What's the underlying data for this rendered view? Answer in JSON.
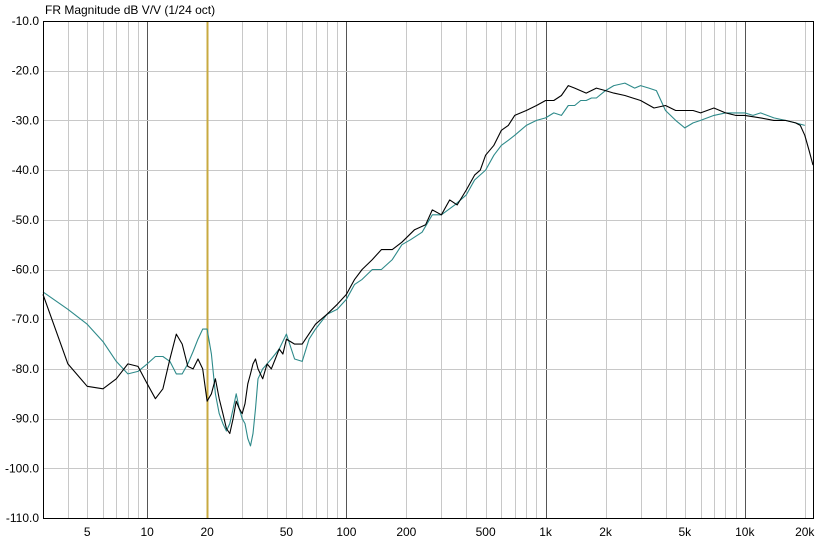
{
  "chart_data": {
    "type": "line",
    "title": "FR Magnitude dB V/V (1/24 oct)",
    "xscale": "log",
    "xlim": [
      3,
      22000
    ],
    "ylim": [
      -110,
      -10
    ],
    "grid": true,
    "legend": "none",
    "yticks": [
      -10,
      -20,
      -30,
      -40,
      -50,
      -60,
      -70,
      -80,
      -90,
      -100,
      -110
    ],
    "ytick_labels": [
      "-10.0",
      "-20.0",
      "-30.0",
      "-40.0",
      "-50.0",
      "-60.0",
      "-70.0",
      "-80.0",
      "-90.0",
      "-100.0",
      "-110.0"
    ],
    "xticks": [
      5,
      10,
      20,
      50,
      100,
      200,
      500,
      1000,
      2000,
      5000,
      10000,
      20000
    ],
    "xtick_labels": [
      "5",
      "10",
      "20",
      "50",
      "100",
      "200",
      "500",
      "1k",
      "2k",
      "5k",
      "10k",
      "20k"
    ],
    "marker_line": {
      "x": 20,
      "color": "#c8aa40"
    },
    "series": [
      {
        "color": "#000000",
        "points": [
          [
            3,
            -65
          ],
          [
            4,
            -79
          ],
          [
            5,
            -83.5
          ],
          [
            6,
            -84
          ],
          [
            7,
            -82
          ],
          [
            8,
            -79
          ],
          [
            9,
            -79.5
          ],
          [
            10,
            -83
          ],
          [
            11,
            -86
          ],
          [
            12,
            -84
          ],
          [
            13,
            -78
          ],
          [
            14,
            -73
          ],
          [
            15,
            -75
          ],
          [
            16,
            -79.5
          ],
          [
            17,
            -80
          ],
          [
            18,
            -78
          ],
          [
            19,
            -80
          ],
          [
            20,
            -86.5
          ],
          [
            21,
            -85
          ],
          [
            22,
            -82
          ],
          [
            23,
            -86
          ],
          [
            24,
            -89
          ],
          [
            25,
            -92
          ],
          [
            26,
            -93
          ],
          [
            27,
            -90
          ],
          [
            28,
            -86.5
          ],
          [
            29,
            -88
          ],
          [
            30,
            -89
          ],
          [
            31,
            -87
          ],
          [
            32,
            -83
          ],
          [
            33,
            -81
          ],
          [
            34,
            -79
          ],
          [
            35,
            -78
          ],
          [
            36,
            -80
          ],
          [
            38,
            -82
          ],
          [
            40,
            -79
          ],
          [
            42,
            -80
          ],
          [
            44,
            -78
          ],
          [
            46,
            -76
          ],
          [
            48,
            -77
          ],
          [
            50,
            -74
          ],
          [
            55,
            -75
          ],
          [
            60,
            -75
          ],
          [
            70,
            -71
          ],
          [
            80,
            -69
          ],
          [
            90,
            -67
          ],
          [
            100,
            -65
          ],
          [
            110,
            -62
          ],
          [
            120,
            -60
          ],
          [
            135,
            -58
          ],
          [
            150,
            -56
          ],
          [
            170,
            -56
          ],
          [
            190,
            -54.5
          ],
          [
            220,
            -52
          ],
          [
            250,
            -51
          ],
          [
            270,
            -48
          ],
          [
            300,
            -49
          ],
          [
            330,
            -46
          ],
          [
            360,
            -47
          ],
          [
            400,
            -44
          ],
          [
            440,
            -41
          ],
          [
            470,
            -40
          ],
          [
            500,
            -37
          ],
          [
            550,
            -35
          ],
          [
            600,
            -32
          ],
          [
            650,
            -31
          ],
          [
            700,
            -29
          ],
          [
            800,
            -28
          ],
          [
            900,
            -27
          ],
          [
            1000,
            -26
          ],
          [
            1100,
            -26
          ],
          [
            1200,
            -25
          ],
          [
            1300,
            -23
          ],
          [
            1400,
            -23.5
          ],
          [
            1600,
            -24.5
          ],
          [
            1800,
            -23.5
          ],
          [
            2000,
            -24
          ],
          [
            2200,
            -24.5
          ],
          [
            2500,
            -25
          ],
          [
            3000,
            -26
          ],
          [
            3500,
            -27.5
          ],
          [
            4000,
            -27
          ],
          [
            4500,
            -28
          ],
          [
            5000,
            -28
          ],
          [
            5500,
            -28
          ],
          [
            6000,
            -28.5
          ],
          [
            7000,
            -27.5
          ],
          [
            8000,
            -28.5
          ],
          [
            9000,
            -29
          ],
          [
            10000,
            -29
          ],
          [
            12000,
            -29.5
          ],
          [
            14000,
            -30
          ],
          [
            16000,
            -30
          ],
          [
            18000,
            -30.5
          ],
          [
            19000,
            -31
          ],
          [
            20000,
            -33
          ],
          [
            21000,
            -36
          ],
          [
            22000,
            -39
          ]
        ]
      },
      {
        "color": "#2e8a8a",
        "points": [
          [
            3,
            -64.5
          ],
          [
            4,
            -68
          ],
          [
            5,
            -71
          ],
          [
            6,
            -74.5
          ],
          [
            7,
            -78.5
          ],
          [
            8,
            -81
          ],
          [
            9,
            -80.5
          ],
          [
            10,
            -79
          ],
          [
            11,
            -77.5
          ],
          [
            12,
            -77.5
          ],
          [
            13,
            -78.5
          ],
          [
            14,
            -81
          ],
          [
            15,
            -81
          ],
          [
            16,
            -79
          ],
          [
            17,
            -76.5
          ],
          [
            18,
            -74
          ],
          [
            19,
            -72
          ],
          [
            20,
            -72
          ],
          [
            21,
            -77
          ],
          [
            22,
            -85
          ],
          [
            23,
            -89
          ],
          [
            24,
            -91
          ],
          [
            25,
            -92.5
          ],
          [
            26,
            -91
          ],
          [
            27,
            -88
          ],
          [
            28,
            -85
          ],
          [
            29,
            -88
          ],
          [
            30,
            -90
          ],
          [
            31,
            -91
          ],
          [
            32,
            -94
          ],
          [
            33,
            -95.5
          ],
          [
            34,
            -93
          ],
          [
            35,
            -88
          ],
          [
            36,
            -82
          ],
          [
            38,
            -80
          ],
          [
            40,
            -79
          ],
          [
            42,
            -78
          ],
          [
            44,
            -77
          ],
          [
            46,
            -76
          ],
          [
            50,
            -73
          ],
          [
            55,
            -78
          ],
          [
            60,
            -78.5
          ],
          [
            65,
            -74
          ],
          [
            70,
            -72
          ],
          [
            80,
            -69
          ],
          [
            90,
            -68
          ],
          [
            100,
            -66
          ],
          [
            110,
            -63
          ],
          [
            120,
            -62
          ],
          [
            135,
            -60
          ],
          [
            150,
            -60
          ],
          [
            170,
            -58
          ],
          [
            190,
            -55
          ],
          [
            210,
            -54
          ],
          [
            240,
            -52.5
          ],
          [
            270,
            -49
          ],
          [
            300,
            -49
          ],
          [
            350,
            -47
          ],
          [
            400,
            -45
          ],
          [
            440,
            -42
          ],
          [
            500,
            -40
          ],
          [
            550,
            -37
          ],
          [
            600,
            -35
          ],
          [
            650,
            -34
          ],
          [
            700,
            -33
          ],
          [
            800,
            -31
          ],
          [
            900,
            -30
          ],
          [
            1000,
            -29.5
          ],
          [
            1100,
            -28.5
          ],
          [
            1200,
            -29
          ],
          [
            1300,
            -27
          ],
          [
            1400,
            -27
          ],
          [
            1500,
            -26
          ],
          [
            1600,
            -26
          ],
          [
            1700,
            -25.5
          ],
          [
            1800,
            -25.5
          ],
          [
            2000,
            -24
          ],
          [
            2200,
            -23
          ],
          [
            2500,
            -22.5
          ],
          [
            2800,
            -23.5
          ],
          [
            3000,
            -23
          ],
          [
            3300,
            -23.5
          ],
          [
            3600,
            -24
          ],
          [
            4000,
            -28
          ],
          [
            4500,
            -30
          ],
          [
            5000,
            -31.5
          ],
          [
            5500,
            -30.5
          ],
          [
            6000,
            -30
          ],
          [
            7000,
            -29
          ],
          [
            8000,
            -28.5
          ],
          [
            9000,
            -28.5
          ],
          [
            10000,
            -28.5
          ],
          [
            11000,
            -29
          ],
          [
            12000,
            -28.5
          ],
          [
            14000,
            -29.5
          ],
          [
            16000,
            -30
          ],
          [
            18000,
            -30.5
          ],
          [
            20000,
            -31
          ]
        ]
      }
    ]
  }
}
